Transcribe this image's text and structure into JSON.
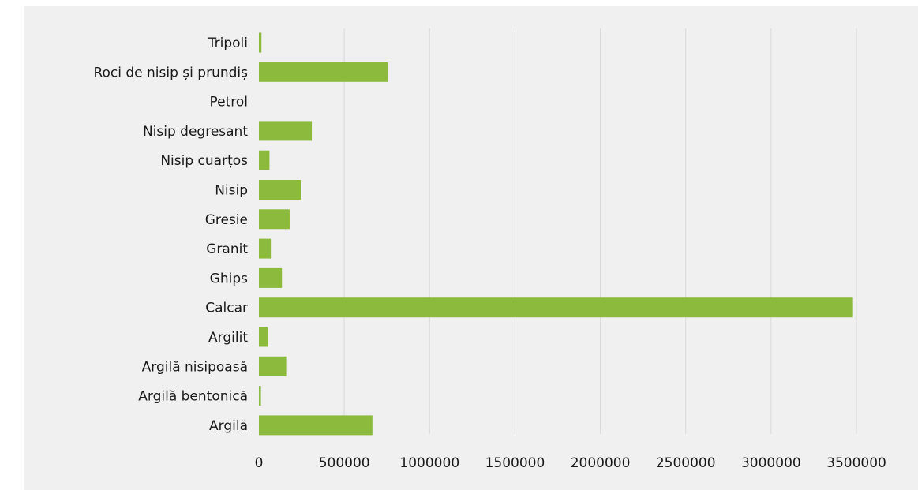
{
  "chart_data": {
    "type": "bar",
    "orientation": "horizontal",
    "categories": [
      "Tripoli",
      "Roci de nisip și prundiș",
      "Petrol",
      "Nisip degresant",
      "Nisip cuarțos",
      "Nisip",
      "Gresie",
      "Granit",
      "Ghips",
      "Calcar",
      "Argilit",
      "Argilă nisipoasă",
      "Argilă bentonică",
      "Argilă"
    ],
    "values": [
      15000,
      755000,
      0,
      310000,
      62000,
      245000,
      180000,
      70000,
      135000,
      3480000,
      52000,
      160000,
      12000,
      665000
    ],
    "xlim": [
      0,
      3500000
    ],
    "xticks": [
      "0",
      "500000",
      "1000000",
      "1500000",
      "2000000",
      "2500000",
      "3000000",
      "3500000"
    ],
    "xtick_values": [
      0,
      500000,
      1000000,
      1500000,
      2000000,
      2500000,
      3000000,
      3500000
    ],
    "grid": "vertical",
    "bar_color": "#8bba3d",
    "background": "#f0f0f0",
    "title": "",
    "xlabel": "",
    "ylabel": ""
  }
}
